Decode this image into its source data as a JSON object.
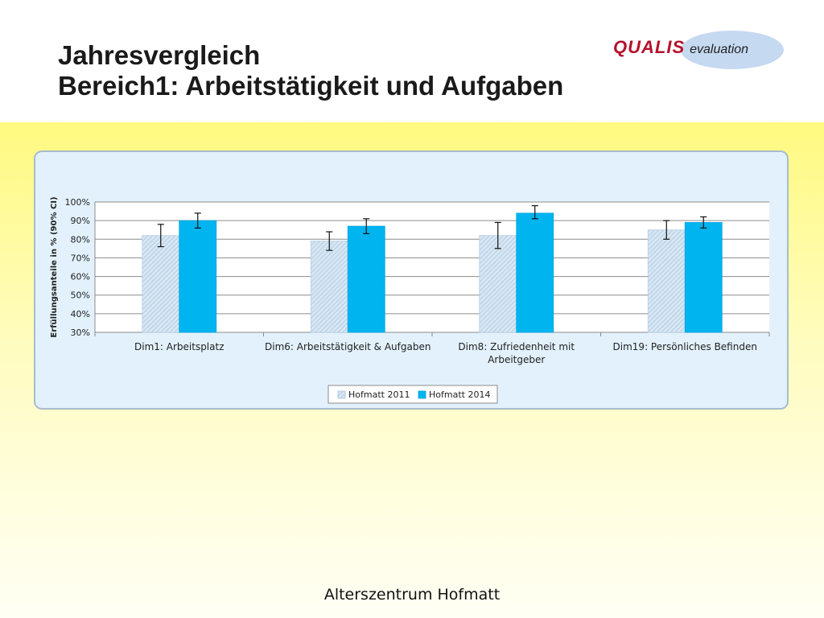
{
  "slide": {
    "title_line1": "Jahresvergleich",
    "title_line2": "Bereich1: Arbeitstätigkeit und Aufgaben",
    "logo_main": "QUALIS",
    "logo_sub": "evaluation",
    "footer": "Alterszentrum Hofmatt",
    "colors": {
      "band_top": "#fffa80",
      "panel_bg": "#e2f1fb",
      "logo_red": "#b4112b",
      "logo_ellipse": "#c5d9f1"
    }
  },
  "chart_data": {
    "type": "bar",
    "title": "",
    "xlabel": "",
    "ylabel": "Erfüllungsanteile in % (90% CI)",
    "ylim": [
      30,
      100
    ],
    "yticks": [
      30,
      40,
      50,
      60,
      70,
      80,
      90,
      100
    ],
    "ytick_labels": [
      "30%",
      "40%",
      "50%",
      "60%",
      "70%",
      "80%",
      "90%",
      "100%"
    ],
    "categories": [
      [
        "Dim1: Arbeitsplatz"
      ],
      [
        "Dim6: Arbeitstätigkeit & Aufgaben"
      ],
      [
        "Dim8: Zufriedenheit mit",
        "Arbeitgeber"
      ],
      [
        "Dim19: Persönliches Befinden"
      ]
    ],
    "series": [
      {
        "name": "Hofmatt 2011",
        "color": "#c9dff0",
        "pattern": "hatched",
        "values": [
          82,
          79,
          82,
          85
        ],
        "ci_low": [
          76,
          74,
          75,
          80
        ],
        "ci_high": [
          88,
          84,
          89,
          90
        ]
      },
      {
        "name": "Hofmatt 2014",
        "color": "#00b4f0",
        "pattern": "solid",
        "values": [
          90,
          87,
          94,
          89
        ],
        "ci_low": [
          86,
          83,
          91,
          86
        ],
        "ci_high": [
          94,
          91,
          98,
          92
        ]
      }
    ],
    "grid": true,
    "legend": "bottom"
  }
}
